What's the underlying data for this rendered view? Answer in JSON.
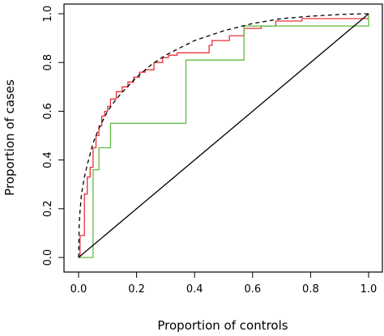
{
  "chart_data": {
    "type": "line",
    "title": "",
    "xlabel": "Proportion of controls",
    "ylabel": "Proportion of cases",
    "xlim": [
      0,
      1
    ],
    "ylim": [
      0,
      1
    ],
    "xticks": [
      "0.0",
      "0.2",
      "0.4",
      "0.6",
      "0.8",
      "1.0"
    ],
    "yticks": [
      "0.0",
      "0.2",
      "0.4",
      "0.6",
      "0.8",
      "1.0"
    ],
    "grid": false,
    "legend": "none",
    "series": [
      {
        "color": "#e8303a",
        "style": "step",
        "x": [
          0,
          0.005,
          0.005,
          0.02,
          0.02,
          0.03,
          0.03,
          0.04,
          0.04,
          0.05,
          0.05,
          0.06,
          0.06,
          0.07,
          0.07,
          0.08,
          0.08,
          0.09,
          0.09,
          0.1,
          0.1,
          0.11,
          0.11,
          0.13,
          0.13,
          0.15,
          0.15,
          0.17,
          0.17,
          0.19,
          0.19,
          0.21,
          0.21,
          0.23,
          0.23,
          0.26,
          0.26,
          0.29,
          0.29,
          0.31,
          0.31,
          0.34,
          0.34,
          0.45,
          0.45,
          0.46,
          0.46,
          0.52,
          0.52,
          0.57,
          0.57,
          0.63,
          0.63,
          0.68,
          0.68,
          0.77,
          0.77,
          1.0
        ],
        "y": [
          0,
          0,
          0.09,
          0.09,
          0.26,
          0.26,
          0.33,
          0.33,
          0.37,
          0.37,
          0.45,
          0.45,
          0.5,
          0.5,
          0.54,
          0.54,
          0.58,
          0.58,
          0.6,
          0.6,
          0.62,
          0.62,
          0.65,
          0.65,
          0.68,
          0.68,
          0.7,
          0.7,
          0.72,
          0.72,
          0.74,
          0.74,
          0.76,
          0.76,
          0.77,
          0.77,
          0.8,
          0.8,
          0.82,
          0.82,
          0.83,
          0.83,
          0.84,
          0.84,
          0.87,
          0.87,
          0.89,
          0.89,
          0.91,
          0.91,
          0.94,
          0.94,
          0.95,
          0.95,
          0.97,
          0.97,
          0.98,
          0.98
        ]
      },
      {
        "color": "#5cbb3e",
        "style": "step",
        "x": [
          0,
          0.05,
          0.05,
          0.07,
          0.07,
          0.11,
          0.11,
          0.37,
          0.37,
          0.57,
          0.57,
          1.0,
          1.0
        ],
        "y": [
          0,
          0,
          0.36,
          0.36,
          0.45,
          0.45,
          0.55,
          0.55,
          0.81,
          0.81,
          0.95,
          0.95,
          1.0
        ]
      },
      {
        "color": "#000000",
        "style": "dashed-curve",
        "x": [
          0,
          0.002,
          0.005,
          0.01,
          0.02,
          0.03,
          0.05,
          0.07,
          0.1,
          0.13,
          0.16,
          0.2,
          0.25,
          0.3,
          0.35,
          0.4,
          0.5,
          0.6,
          0.7,
          0.8,
          0.9,
          0.95,
          1.0
        ],
        "y": [
          0,
          0.13,
          0.19,
          0.26,
          0.33,
          0.38,
          0.47,
          0.53,
          0.6,
          0.65,
          0.69,
          0.74,
          0.79,
          0.83,
          0.86,
          0.89,
          0.93,
          0.96,
          0.98,
          0.99,
          0.997,
          0.999,
          1.0
        ]
      },
      {
        "color": "#000000",
        "style": "solid",
        "x": [
          0,
          1
        ],
        "y": [
          0,
          1
        ]
      }
    ]
  }
}
